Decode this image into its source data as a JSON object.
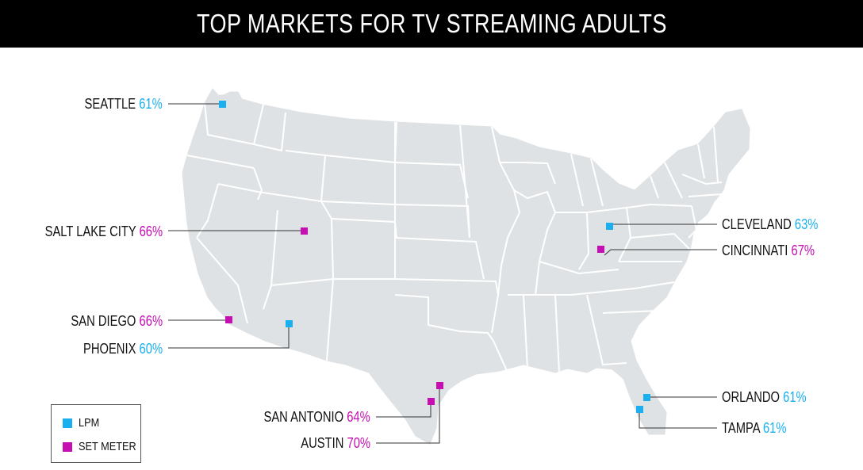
{
  "title": "TOP MARKETS FOR TV STREAMING ADULTS",
  "colors": {
    "lpm": "#1ab0f0",
    "set_meter": "#c60fb0",
    "land": "#dfe2e4",
    "border": "#ffffff",
    "title_bg": "#000000"
  },
  "legend": {
    "lpm_label": "LPM",
    "set_meter_label": "SET METER"
  },
  "markets": [
    {
      "city": "SEATTLE",
      "pct": "61%",
      "type": "lpm"
    },
    {
      "city": "SALT LAKE CITY",
      "pct": "66%",
      "type": "set_meter"
    },
    {
      "city": "SAN DIEGO",
      "pct": "66%",
      "type": "set_meter"
    },
    {
      "city": "PHOENIX",
      "pct": "60%",
      "type": "lpm"
    },
    {
      "city": "SAN ANTONIO",
      "pct": "64%",
      "type": "set_meter"
    },
    {
      "city": "AUSTIN",
      "pct": "70%",
      "type": "set_meter"
    },
    {
      "city": "CLEVELAND",
      "pct": "63%",
      "type": "lpm"
    },
    {
      "city": "CINCINNATI",
      "pct": "67%",
      "type": "set_meter"
    },
    {
      "city": "ORLANDO",
      "pct": "61%",
      "type": "lpm"
    },
    {
      "city": "TAMPA",
      "pct": "61%",
      "type": "lpm"
    }
  ]
}
